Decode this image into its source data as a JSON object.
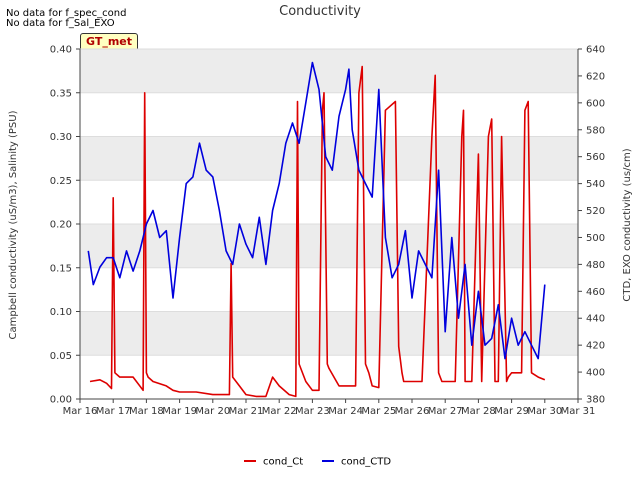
{
  "notes": [
    "No data for f_spec_cond",
    "No data for f_Sal_EXO"
  ],
  "station_badge": "GT_met",
  "colors": {
    "cond_Ct": "#dd0000",
    "cond_CTD": "#0000dd",
    "band": "#ececec"
  },
  "chart_data": {
    "type": "line",
    "title": "Conductivity",
    "xlabel": "",
    "ylabel_left": "Campbell conductivity (uS/m3), Salinity (PSU)",
    "ylabel_right": "CTD, EXO conductivity (us/cm)",
    "x_ticks": [
      "Mar 16",
      "Mar 17",
      "Mar 18",
      "Mar 19",
      "Mar 20",
      "Mar 21",
      "Mar 22",
      "Mar 23",
      "Mar 24",
      "Mar 25",
      "Mar 26",
      "Mar 27",
      "Mar 28",
      "Mar 29",
      "Mar 30",
      "Mar 31"
    ],
    "xlim_days": [
      16,
      31
    ],
    "ylim_left": [
      0,
      0.4
    ],
    "yticks_left": [
      "0.00",
      "0.05",
      "0.10",
      "0.15",
      "0.20",
      "0.25",
      "0.30",
      "0.35",
      "0.40"
    ],
    "ylim_right": [
      380,
      640
    ],
    "yticks_right": [
      "380",
      "400",
      "420",
      "440",
      "460",
      "480",
      "500",
      "520",
      "540",
      "560",
      "580",
      "600",
      "620",
      "640"
    ],
    "grid": "horizontal alternating bands",
    "legend_position": "bottom",
    "series": [
      {
        "name": "cond_Ct",
        "axis": "left",
        "x": [
          16.3,
          16.6,
          16.8,
          16.95,
          17.0,
          17.05,
          17.2,
          17.6,
          17.9,
          17.95,
          18.0,
          18.05,
          18.2,
          18.6,
          18.8,
          19.0,
          19.5,
          20.0,
          20.3,
          20.5,
          20.55,
          20.6,
          20.8,
          21.0,
          21.3,
          21.6,
          21.8,
          22.0,
          22.3,
          22.5,
          22.55,
          22.6,
          22.8,
          23.0,
          23.2,
          23.3,
          23.35,
          23.45,
          23.5,
          23.8,
          24.1,
          24.3,
          24.4,
          24.5,
          24.6,
          24.7,
          24.8,
          25.0,
          25.2,
          25.5,
          25.6,
          25.7,
          25.75,
          25.8,
          26.0,
          26.3,
          26.6,
          26.7,
          26.8,
          26.85,
          26.9,
          27.0,
          27.3,
          27.5,
          27.55,
          27.6,
          27.7,
          27.8,
          28.0,
          28.1,
          28.3,
          28.4,
          28.5,
          28.6,
          28.7,
          28.85,
          28.9,
          29.0,
          29.3,
          29.4,
          29.5,
          29.6,
          29.8,
          30.0
        ],
        "values": [
          0.02,
          0.022,
          0.018,
          0.012,
          0.23,
          0.03,
          0.025,
          0.025,
          0.01,
          0.35,
          0.03,
          0.025,
          0.02,
          0.015,
          0.01,
          0.008,
          0.008,
          0.005,
          0.005,
          0.005,
          0.155,
          0.025,
          0.015,
          0.005,
          0.003,
          0.003,
          0.025,
          0.015,
          0.005,
          0.003,
          0.34,
          0.04,
          0.02,
          0.01,
          0.01,
          0.33,
          0.35,
          0.04,
          0.035,
          0.015,
          0.015,
          0.015,
          0.35,
          0.38,
          0.04,
          0.03,
          0.015,
          0.013,
          0.33,
          0.34,
          0.06,
          0.03,
          0.02,
          0.02,
          0.02,
          0.02,
          0.3,
          0.37,
          0.03,
          0.025,
          0.02,
          0.02,
          0.02,
          0.3,
          0.33,
          0.02,
          0.02,
          0.02,
          0.28,
          0.02,
          0.3,
          0.32,
          0.02,
          0.02,
          0.3,
          0.02,
          0.025,
          0.03,
          0.03,
          0.33,
          0.34,
          0.03,
          0.025,
          0.022
        ]
      },
      {
        "name": "cond_CTD",
        "axis": "right",
        "x": [
          16.25,
          16.4,
          16.6,
          16.8,
          17.0,
          17.2,
          17.4,
          17.6,
          17.8,
          18.0,
          18.2,
          18.4,
          18.6,
          18.8,
          19.0,
          19.2,
          19.4,
          19.6,
          19.8,
          20.0,
          20.2,
          20.4,
          20.6,
          20.8,
          21.0,
          21.2,
          21.4,
          21.6,
          21.8,
          22.0,
          22.2,
          22.4,
          22.6,
          22.8,
          23.0,
          23.2,
          23.4,
          23.6,
          23.8,
          24.0,
          24.1,
          24.2,
          24.4,
          24.6,
          24.8,
          25.0,
          25.2,
          25.4,
          25.6,
          25.8,
          26.0,
          26.2,
          26.4,
          26.6,
          26.8,
          27.0,
          27.2,
          27.4,
          27.6,
          27.8,
          28.0,
          28.2,
          28.4,
          28.6,
          28.8,
          29.0,
          29.2,
          29.4,
          29.6,
          29.8,
          30.0
        ],
        "values": [
          490,
          465,
          478,
          485,
          485,
          470,
          490,
          475,
          490,
          510,
          520,
          500,
          505,
          455,
          500,
          540,
          545,
          570,
          550,
          545,
          520,
          490,
          480,
          510,
          495,
          485,
          515,
          480,
          520,
          540,
          570,
          585,
          570,
          600,
          630,
          610,
          560,
          550,
          590,
          610,
          625,
          580,
          550,
          540,
          530,
          610,
          500,
          470,
          480,
          505,
          455,
          490,
          480,
          470,
          550,
          430,
          500,
          440,
          480,
          420,
          460,
          420,
          425,
          450,
          410,
          440,
          420,
          430,
          420,
          410,
          465
        ]
      }
    ]
  }
}
